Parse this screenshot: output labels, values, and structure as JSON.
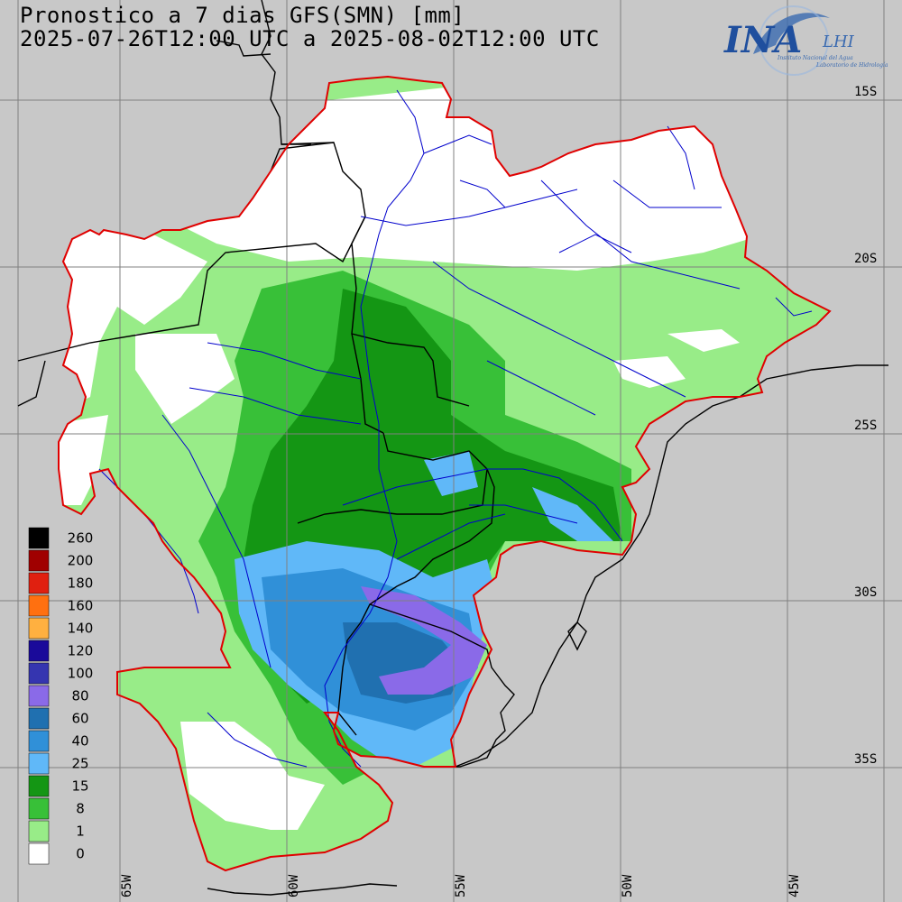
{
  "title": {
    "line1": "Pronostico a 7 dias GFS(SMN) [mm]",
    "line2": "2025-07-26T12:00 UTC a 2025-08-02T12:00 UTC"
  },
  "logo": {
    "org": "INA",
    "lab": "LHI",
    "subtitle1": "Instituto Nacional del Agua",
    "subtitle2": "Laboratorio de Hidrología"
  },
  "lat_labels": [
    "15S",
    "20S",
    "25S",
    "30S",
    "35S"
  ],
  "lon_labels": [
    "65W",
    "60W",
    "55W",
    "50W",
    "45W"
  ],
  "legend": [
    {
      "label": "260",
      "color": "#000000"
    },
    {
      "label": "200",
      "color": "#a00000"
    },
    {
      "label": "180",
      "color": "#e02010"
    },
    {
      "label": "160",
      "color": "#ff7010"
    },
    {
      "label": "140",
      "color": "#ffb040"
    },
    {
      "label": "120",
      "color": "#1a0a9a"
    },
    {
      "label": "100",
      "color": "#3535b0"
    },
    {
      "label": "80",
      "color": "#8a6ae8"
    },
    {
      "label": "60",
      "color": "#2070b0"
    },
    {
      "label": "40",
      "color": "#3090d8"
    },
    {
      "label": "25",
      "color": "#60b8f8"
    },
    {
      "label": "15",
      "color": "#149614"
    },
    {
      "label": "8",
      "color": "#38c038"
    },
    {
      "label": "1",
      "color": "#98ec88"
    },
    {
      "label": "0",
      "color": "#ffffff"
    }
  ],
  "colors": {
    "background": "#c8c8c8",
    "basin_outline": "#e00000",
    "rivers": "#0000cc",
    "borders": "#000000"
  }
}
